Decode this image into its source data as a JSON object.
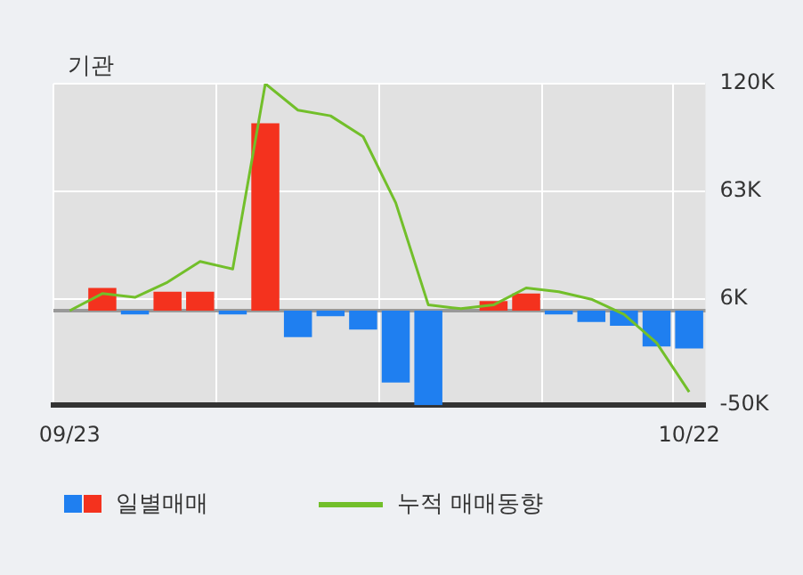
{
  "chart_data": {
    "type": "bar",
    "title": "기관",
    "categories": [
      "09/23",
      null,
      null,
      null,
      null,
      null,
      null,
      null,
      null,
      null,
      null,
      null,
      null,
      null,
      null,
      null,
      null,
      null,
      null,
      "10/22"
    ],
    "series": [
      {
        "name": "일별매매",
        "colors": [
          "#f4321e",
          "#f4321e",
          "#1f7ff0",
          "#f4321e",
          "#f4321e",
          "#1f7ff0",
          "#f4321e",
          "#1f7ff0",
          "#1f7ff0",
          "#1f7ff0",
          "#1f7ff0",
          "#1f7ff0",
          "#1f7ff0",
          "#f4321e",
          "#f4321e",
          "#1f7ff0",
          "#1f7ff0",
          "#1f7ff0",
          "#1f7ff0",
          "#1f7ff0"
        ],
        "values": [
          0,
          12000,
          -2000,
          10000,
          10000,
          -2000,
          99000,
          -14000,
          -3000,
          -10000,
          -38000,
          -50000,
          0,
          5000,
          9000,
          -2000,
          -6000,
          -8000,
          -19000,
          -20000
        ]
      },
      {
        "name": "누적 매매동향",
        "type": "line",
        "color": "#72bf2a",
        "values": [
          0,
          9000,
          7000,
          15000,
          26000,
          22000,
          120000,
          106000,
          103000,
          92000,
          57000,
          3000,
          1000,
          3000,
          12000,
          10000,
          6000,
          -2000,
          -17000,
          -43000
        ]
      }
    ],
    "ylim": [
      -50000,
      120000
    ],
    "yticks": [
      {
        "value": 120000,
        "label": "120K"
      },
      {
        "value": 63000,
        "label": "63K"
      },
      {
        "value": 6000,
        "label": "6K"
      },
      {
        "value": -50000,
        "label": "-50K"
      }
    ],
    "ref_lines": [
      {
        "axis": "y",
        "value": 0,
        "color": "#999999"
      }
    ],
    "grid": true,
    "legend": "bottom",
    "marker": "none",
    "line_style": "solid"
  }
}
